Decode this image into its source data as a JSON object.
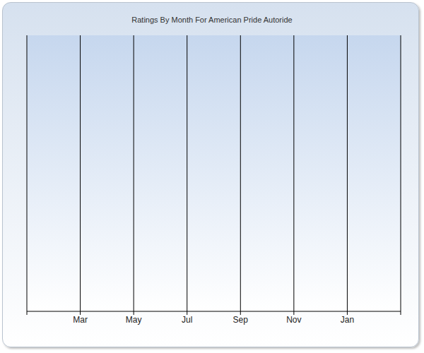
{
  "chart_data": {
    "type": "line",
    "title": "Ratings By Month For American Pride Autoride",
    "categories": [
      null,
      "Mar",
      "May",
      "Jul",
      "Sep",
      "Nov",
      "Jan",
      null
    ],
    "values": [
      null,
      null,
      null,
      null,
      null,
      null,
      null,
      null
    ],
    "grid": true,
    "tick_labels": "x"
  }
}
